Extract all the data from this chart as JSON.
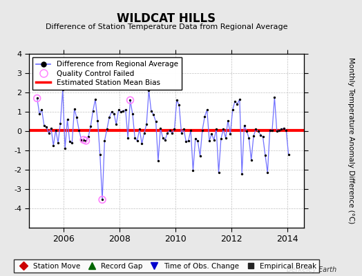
{
  "title": "WILDCAT HILLS",
  "subtitle": "Difference of Station Temperature Data from Regional Average",
  "ylabel": "Monthly Temperature Anomaly Difference (°C)",
  "bias_value": 0.05,
  "ylim": [
    -5,
    4
  ],
  "yticks": [
    -4,
    -3,
    -2,
    -1,
    0,
    1,
    2,
    3,
    4
  ],
  "bg_color": "#e8e8e8",
  "plot_bg_color": "#ffffff",
  "line_color": "#7070ff",
  "marker_color": "#000000",
  "bias_color": "#ff0000",
  "qc_color": "#ff80ff",
  "berkeley_earth_text": "Berkeley Earth",
  "xlim": [
    2004.75,
    2014.6
  ],
  "xticks": [
    2006,
    2008,
    2010,
    2012,
    2014
  ],
  "time_series": [
    [
      2005.0417,
      1.7
    ],
    [
      2005.125,
      0.9
    ],
    [
      2005.208,
      1.1
    ],
    [
      2005.292,
      0.3
    ],
    [
      2005.375,
      0.2
    ],
    [
      2005.458,
      -0.1
    ],
    [
      2005.542,
      0.15
    ],
    [
      2005.625,
      -0.75
    ],
    [
      2005.708,
      0.05
    ],
    [
      2005.792,
      -0.6
    ],
    [
      2005.875,
      0.4
    ],
    [
      2005.958,
      2.15
    ],
    [
      2006.0417,
      -0.9
    ],
    [
      2006.125,
      0.6
    ],
    [
      2006.208,
      -0.55
    ],
    [
      2006.292,
      -0.6
    ],
    [
      2006.375,
      1.15
    ],
    [
      2006.458,
      0.7
    ],
    [
      2006.542,
      0.05
    ],
    [
      2006.625,
      -0.45
    ],
    [
      2006.708,
      -0.45
    ],
    [
      2006.792,
      -0.5
    ],
    [
      2006.875,
      -0.3
    ],
    [
      2006.958,
      0.25
    ],
    [
      2007.0417,
      1.05
    ],
    [
      2007.125,
      1.65
    ],
    [
      2007.208,
      0.55
    ],
    [
      2007.292,
      -1.2
    ],
    [
      2007.375,
      -3.55
    ],
    [
      2007.458,
      -0.5
    ],
    [
      2007.542,
      0.1
    ],
    [
      2007.625,
      0.7
    ],
    [
      2007.708,
      1.0
    ],
    [
      2007.792,
      0.9
    ],
    [
      2007.875,
      0.35
    ],
    [
      2007.958,
      1.1
    ],
    [
      2008.0417,
      1.0
    ],
    [
      2008.125,
      1.05
    ],
    [
      2008.208,
      1.1
    ],
    [
      2008.292,
      -0.35
    ],
    [
      2008.375,
      1.6
    ],
    [
      2008.458,
      0.9
    ],
    [
      2008.542,
      -0.35
    ],
    [
      2008.625,
      -0.5
    ],
    [
      2008.708,
      0.1
    ],
    [
      2008.792,
      -0.65
    ],
    [
      2008.875,
      -0.1
    ],
    [
      2008.958,
      0.35
    ],
    [
      2009.0417,
      2.1
    ],
    [
      2009.125,
      1.05
    ],
    [
      2009.208,
      0.85
    ],
    [
      2009.292,
      0.5
    ],
    [
      2009.375,
      -1.55
    ],
    [
      2009.458,
      0.15
    ],
    [
      2009.542,
      -0.35
    ],
    [
      2009.625,
      -0.45
    ],
    [
      2009.708,
      -0.1
    ],
    [
      2009.792,
      0.05
    ],
    [
      2009.875,
      -0.1
    ],
    [
      2009.958,
      0.1
    ],
    [
      2010.0417,
      1.6
    ],
    [
      2010.125,
      1.35
    ],
    [
      2010.208,
      -0.1
    ],
    [
      2010.292,
      0.1
    ],
    [
      2010.375,
      -0.55
    ],
    [
      2010.458,
      -0.5
    ],
    [
      2010.542,
      0.05
    ],
    [
      2010.625,
      -2.05
    ],
    [
      2010.708,
      -0.4
    ],
    [
      2010.792,
      -0.5
    ],
    [
      2010.875,
      -1.3
    ],
    [
      2010.958,
      0.05
    ],
    [
      2011.0417,
      0.75
    ],
    [
      2011.125,
      1.1
    ],
    [
      2011.208,
      -0.5
    ],
    [
      2011.292,
      -0.15
    ],
    [
      2011.375,
      -0.45
    ],
    [
      2011.458,
      0.1
    ],
    [
      2011.542,
      -2.15
    ],
    [
      2011.625,
      -0.4
    ],
    [
      2011.708,
      0.1
    ],
    [
      2011.792,
      -0.35
    ],
    [
      2011.875,
      0.55
    ],
    [
      2011.958,
      -0.15
    ],
    [
      2012.0417,
      1.1
    ],
    [
      2012.125,
      1.55
    ],
    [
      2012.208,
      1.4
    ],
    [
      2012.292,
      1.65
    ],
    [
      2012.375,
      -2.2
    ],
    [
      2012.458,
      0.3
    ],
    [
      2012.542,
      0.0
    ],
    [
      2012.625,
      -0.35
    ],
    [
      2012.708,
      -1.5
    ],
    [
      2012.792,
      -0.25
    ],
    [
      2012.875,
      0.1
    ],
    [
      2012.958,
      0.0
    ],
    [
      2013.0417,
      -0.2
    ],
    [
      2013.125,
      -0.3
    ],
    [
      2013.208,
      -1.25
    ],
    [
      2013.292,
      -2.15
    ],
    [
      2013.375,
      0.05
    ],
    [
      2013.458,
      0.05
    ],
    [
      2013.542,
      1.75
    ],
    [
      2013.625,
      0.0
    ],
    [
      2013.708,
      0.05
    ],
    [
      2013.792,
      0.1
    ],
    [
      2013.875,
      0.15
    ],
    [
      2013.958,
      0.05
    ],
    [
      2014.0417,
      -1.2
    ]
  ],
  "qc_failed": [
    [
      2005.0417,
      1.7
    ],
    [
      2006.708,
      -0.45
    ],
    [
      2006.792,
      -0.5
    ],
    [
      2007.375,
      -3.55
    ],
    [
      2008.375,
      1.6
    ]
  ]
}
